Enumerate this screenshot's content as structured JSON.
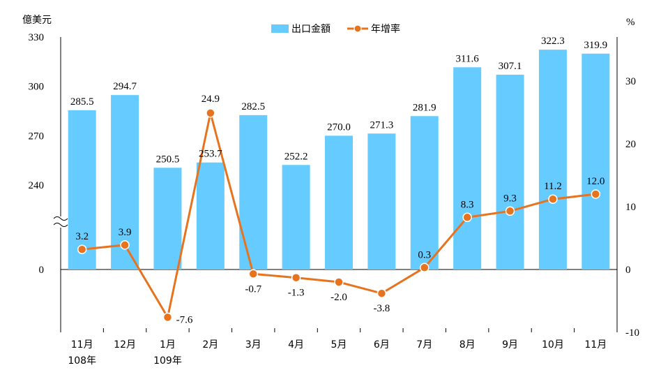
{
  "chart_data": {
    "type": "bar",
    "left_axis_unit": "億美元",
    "right_axis_unit": "%",
    "categories": [
      "11月",
      "12月",
      "1月",
      "2月",
      "3月",
      "4月",
      "5月",
      "6月",
      "7月",
      "8月",
      "9月",
      "10月",
      "11月"
    ],
    "year_labels": [
      {
        "index": 0,
        "text": "108年"
      },
      {
        "index": 2,
        "text": "109年"
      }
    ],
    "series": [
      {
        "name": "出口金額",
        "type": "bar",
        "axis": "left",
        "color": "#66CCFF",
        "values": [
          285.5,
          294.7,
          250.5,
          253.7,
          282.5,
          252.2,
          270.0,
          271.3,
          281.9,
          311.6,
          307.1,
          322.3,
          319.9
        ],
        "labels": [
          "285.5",
          "294.7",
          "250.5",
          "253.7",
          "282.5",
          "252.2",
          "270.0",
          "271.3",
          "281.9",
          "311.6",
          "307.1",
          "322.3",
          "319.9"
        ]
      },
      {
        "name": "年增率",
        "type": "line",
        "axis": "right",
        "color": "#E8731E",
        "values": [
          3.2,
          3.9,
          -7.6,
          24.9,
          -0.7,
          -1.3,
          -2.0,
          -3.8,
          0.3,
          8.3,
          9.3,
          11.2,
          12.0
        ],
        "labels": [
          "3.2",
          "3.9",
          "-7.6",
          "24.9",
          "-0.7",
          "-1.3",
          "-2.0",
          "-3.8",
          "0.3",
          "8.3",
          "9.3",
          "11.2",
          "12.0"
        ]
      }
    ],
    "left_axis": {
      "ticks": [
        "330",
        "300",
        "270",
        "240",
        "0"
      ],
      "tick_values": [
        330,
        300,
        270,
        240,
        0
      ],
      "broken": true,
      "break_from": 0,
      "break_to": 240
    },
    "right_axis": {
      "ticks": [
        "30",
        "20",
        "10",
        "0",
        "-10"
      ],
      "tick_values": [
        30,
        20,
        10,
        0,
        -10
      ],
      "ylim": [
        -10,
        35
      ]
    },
    "legend_position": "top-center",
    "grid": false
  }
}
